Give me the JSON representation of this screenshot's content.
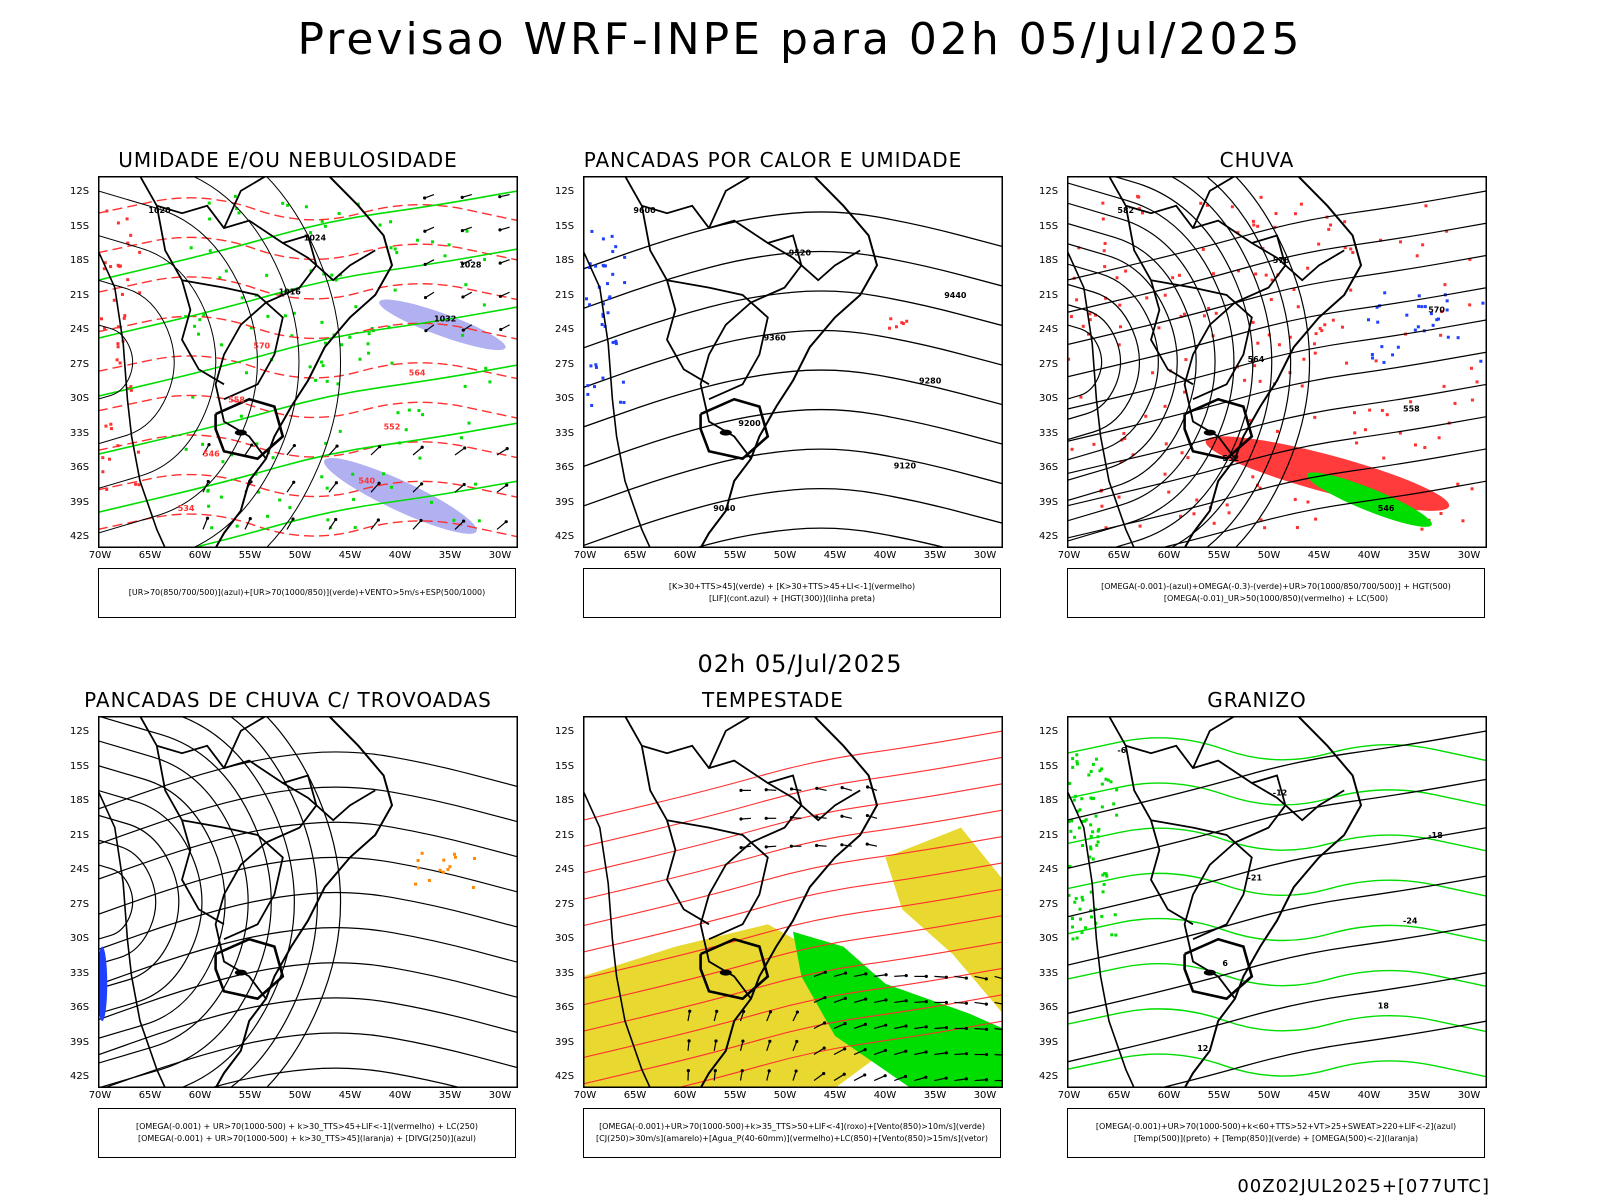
{
  "header": {
    "title": "Previsao WRF-INPE  para 02h 05/Jul/2025"
  },
  "subtitle": "02h 05/Jul/2025",
  "footer": "00Z02JUL2025+[077UTC]",
  "axes": {
    "lat_labels": [
      "12S",
      "15S",
      "18S",
      "21S",
      "24S",
      "27S",
      "30S",
      "33S",
      "36S",
      "39S",
      "42S"
    ],
    "lon_labels": [
      "70W",
      "65W",
      "60W",
      "55W",
      "50W",
      "45W",
      "40W",
      "35W",
      "30W"
    ]
  },
  "colors": {
    "red": "#ff3030",
    "green": "#00dd00",
    "blue": "#2040ff",
    "lavender": "#a8a8f0",
    "yellow": "#e8d830",
    "orange": "#ff8800",
    "black": "#000000"
  },
  "panels": [
    {
      "title": "UMIDADE E/OU NEBULOSIDADE",
      "legend": [
        "[UR>70(850/700/500)](azul)+[UR>70(1000/850)](verde)+VENTO>5m/s+ESP(500/1000)"
      ],
      "labels": [
        {
          "t": "1020",
          "c": "black"
        },
        {
          "t": "1024",
          "c": "black"
        },
        {
          "t": "1028",
          "c": "black"
        },
        {
          "t": "1016",
          "c": "black"
        },
        {
          "t": "1032",
          "c": "black"
        },
        {
          "t": "570",
          "c": "red"
        },
        {
          "t": "564",
          "c": "red"
        },
        {
          "t": "558",
          "c": "red"
        },
        {
          "t": "552",
          "c": "red"
        },
        {
          "t": "546",
          "c": "red"
        },
        {
          "t": "540",
          "c": "red"
        },
        {
          "t": "534",
          "c": "red"
        }
      ]
    },
    {
      "title": "PANCADAS POR CALOR E UMIDADE",
      "legend": [
        "[K>30+TTS>45](verde)  +  [K>30+TTS>45+LI<-1](vermelho)",
        "[LIF](cont.azul)  +  [HGT(300)](linha preta)"
      ],
      "labels": [
        {
          "t": "9600",
          "c": "black"
        },
        {
          "t": "9520",
          "c": "black"
        },
        {
          "t": "9440",
          "c": "black"
        },
        {
          "t": "9360",
          "c": "black"
        },
        {
          "t": "9280",
          "c": "black"
        },
        {
          "t": "9200",
          "c": "black"
        },
        {
          "t": "9120",
          "c": "black"
        },
        {
          "t": "9040",
          "c": "black"
        }
      ]
    },
    {
      "title": "CHUVA",
      "legend": [
        "[OMEGA(-0.001)-(azul)+OMEGA(-0.3)-(verde)+UR>70(1000/850/700/500)]  +  HGT(500)",
        "[OMEGA(-0.01)_UR>50(1000/850)(vermelho)  +  LC(500)"
      ],
      "labels": [
        {
          "t": "582",
          "c": "black"
        },
        {
          "t": "576",
          "c": "black"
        },
        {
          "t": "570",
          "c": "black"
        },
        {
          "t": "564",
          "c": "black"
        },
        {
          "t": "558",
          "c": "black"
        },
        {
          "t": "552",
          "c": "black"
        },
        {
          "t": "546",
          "c": "black"
        }
      ]
    },
    {
      "title": "PANCADAS DE CHUVA C/ TROVOADAS",
      "legend": [
        "[OMEGA(-0.001)  +  UR>70(1000-500)  +  k>30_TTS>45+LIF<-1](vermelho)  +  LC(250)",
        "[OMEGA(-0.001)  +  UR>70(1000-500)  +  k>30_TTS>45](laranja)  +  [DIVG(250)](azul)"
      ],
      "labels": []
    },
    {
      "title": "TEMPESTADE",
      "legend": [
        "[OMEGA(-0.001)+UR>70(1000-500)+k>35_TTS>50+LIF<-4](roxo)+[Vento(850)>10m/s](verde)",
        "[CJ(250)>30m/s](amarelo)+[Agua_P(40-60mm)](vermelho)+LC(850)+[Vento(850)>15m/s](vetor)"
      ],
      "labels": []
    },
    {
      "title": "GRANIZO",
      "legend": [
        "[OMEGA(-0.001)+UR>70(1000-500)+k<60+TTS>52+VT>25+SWEAT>220+LIF<-2](azul)",
        "[Temp(500)](preto)  +  [Temp(850)](verde)  +  [OMEGA(500)<-2](laranja)"
      ],
      "labels": [
        {
          "t": "-6",
          "c": "black"
        },
        {
          "t": "-12",
          "c": "black"
        },
        {
          "t": "-18",
          "c": "black"
        },
        {
          "t": "-21",
          "c": "black"
        },
        {
          "t": "-24",
          "c": "black"
        },
        {
          "t": "6",
          "c": "black"
        },
        {
          "t": "18",
          "c": "black"
        },
        {
          "t": "12",
          "c": "black"
        }
      ]
    }
  ]
}
